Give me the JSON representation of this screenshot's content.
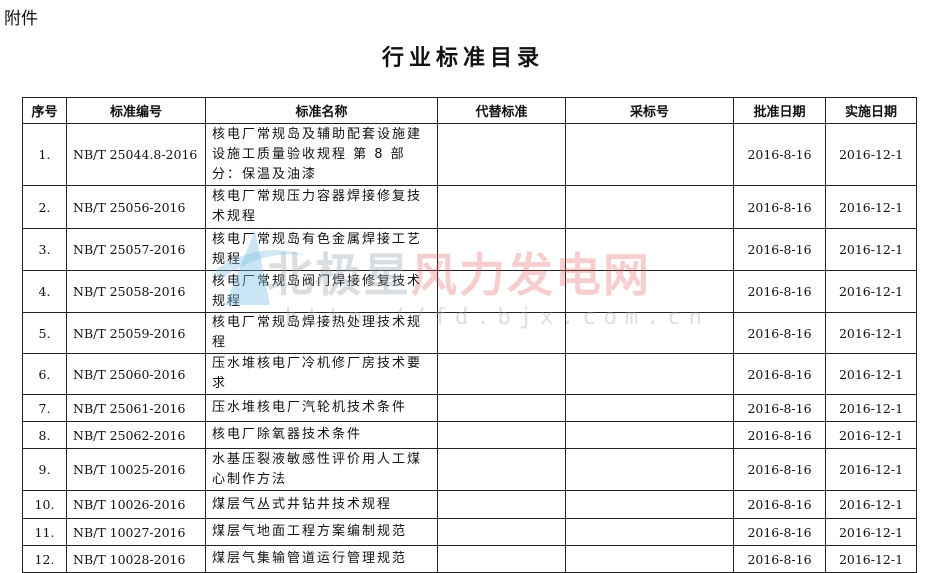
{
  "attachment_label": "附件",
  "title": "行业标准目录",
  "headers": [
    "序号",
    "标准编号",
    "标准名称",
    "代替标准",
    "采标号",
    "批准日期",
    "实施日期"
  ],
  "rows": [
    {
      "no": "1.",
      "code": "NB/T 25044.8-2016",
      "name": "核电厂常规岛及辅助配套设施建设施工质量验收规程 第 8 部分：保温及油漆",
      "replace": "",
      "adopt": "",
      "approve": "2016-8-16",
      "effective": "2016-12-1"
    },
    {
      "no": "2.",
      "code": "NB/T 25056-2016",
      "name": "核电厂常规压力容器焊接修复技术规程",
      "replace": "",
      "adopt": "",
      "approve": "2016-8-16",
      "effective": "2016-12-1"
    },
    {
      "no": "3.",
      "code": "NB/T 25057-2016",
      "name": "核电厂常规岛有色金属焊接工艺规程",
      "replace": "",
      "adopt": "",
      "approve": "2016-8-16",
      "effective": "2016-12-1"
    },
    {
      "no": "4.",
      "code": "NB/T 25058-2016",
      "name": "核电厂常规岛阀门焊接修复技术规程",
      "replace": "",
      "adopt": "",
      "approve": "2016-8-16",
      "effective": "2016-12-1"
    },
    {
      "no": "5.",
      "code": "NB/T 25059-2016",
      "name": "核电厂常规岛焊接热处理技术规程",
      "replace": "",
      "adopt": "",
      "approve": "2016-8-16",
      "effective": "2016-12-1"
    },
    {
      "no": "6.",
      "code": "NB/T 25060-2016",
      "name": "压水堆核电厂冷机修厂房技术要求",
      "replace": "",
      "adopt": "",
      "approve": "2016-8-16",
      "effective": "2016-12-1"
    },
    {
      "no": "7.",
      "code": "NB/T 25061-2016",
      "name": "压水堆核电厂汽轮机技术条件",
      "replace": "",
      "adopt": "",
      "approve": "2016-8-16",
      "effective": "2016-12-1"
    },
    {
      "no": "8.",
      "code": "NB/T 25062-2016",
      "name": "核电厂除氧器技术条件",
      "replace": "",
      "adopt": "",
      "approve": "2016-8-16",
      "effective": "2016-12-1"
    },
    {
      "no": "9.",
      "code": "NB/T 10025-2016",
      "name": "水基压裂液敏感性评价用人工煤心制作方法",
      "replace": "",
      "adopt": "",
      "approve": "2016-8-16",
      "effective": "2016-12-1"
    },
    {
      "no": "10.",
      "code": "NB/T 10026-2016",
      "name": "煤层气丛式井钻井技术规程",
      "replace": "",
      "adopt": "",
      "approve": "2016-8-16",
      "effective": "2016-12-1"
    },
    {
      "no": "11.",
      "code": "NB/T 10027-2016",
      "name": "煤层气地面工程方案编制规范",
      "replace": "",
      "adopt": "",
      "approve": "2016-8-16",
      "effective": "2016-12-1"
    },
    {
      "no": "12.",
      "code": "NB/T 10028-2016",
      "name": "煤层气集输管道运行管理规范",
      "replace": "",
      "adopt": "",
      "approve": "2016-8-16",
      "effective": "2016-12-1"
    }
  ],
  "watermark": {
    "name_part1": "北极星",
    "name_part2": "风力发电网",
    "url": "http://fd.bjx.com.cn"
  }
}
